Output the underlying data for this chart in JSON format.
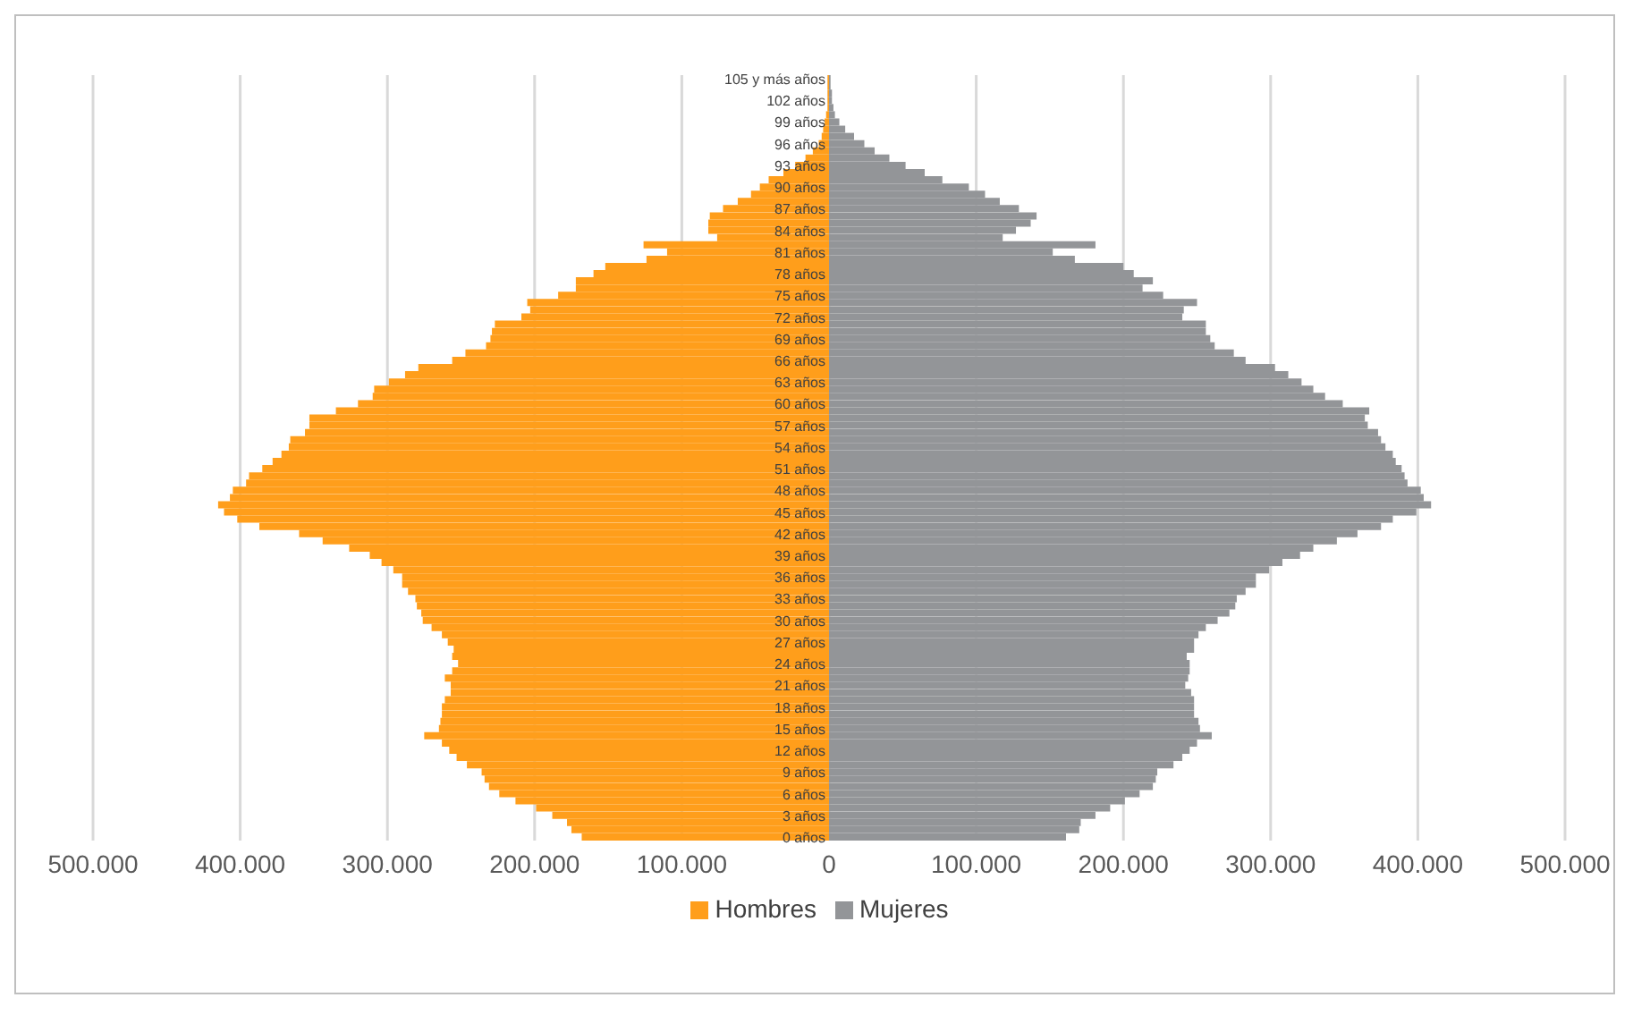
{
  "chart_data": {
    "type": "bar",
    "orientation": "horizontal",
    "stacked": true,
    "categories": [
      "105 y más años",
      null,
      null,
      "102 años",
      null,
      null,
      "99 años",
      null,
      null,
      "96 años",
      null,
      null,
      "93 años",
      null,
      null,
      "90 años",
      null,
      null,
      "87 años",
      null,
      null,
      "84 años",
      null,
      null,
      "81 años",
      null,
      null,
      "78 años",
      null,
      null,
      "75 años",
      null,
      null,
      "72 años",
      null,
      null,
      "69 años",
      null,
      null,
      "66 años",
      null,
      null,
      "63 años",
      null,
      null,
      "60 años",
      null,
      null,
      "57 años",
      null,
      null,
      "54 años",
      null,
      null,
      "51 años",
      null,
      null,
      "48 años",
      null,
      null,
      "45 años",
      null,
      null,
      "42 años",
      null,
      null,
      "39 años",
      null,
      null,
      "36 años",
      null,
      null,
      "33 años",
      null,
      null,
      "30 años",
      null,
      null,
      "27 años",
      null,
      null,
      "24 años",
      null,
      null,
      "21 años",
      null,
      null,
      "18 años",
      null,
      null,
      "15 años",
      null,
      null,
      "12 años",
      null,
      null,
      "9 años",
      null,
      null,
      "6 años",
      null,
      null,
      "3 años",
      null,
      null,
      "0 años"
    ],
    "series": [
      {
        "name": "Hombres",
        "color": "#ff9e1b",
        "values": [
          -1000,
          -1000,
          -1000,
          -1000,
          -1000,
          -2000,
          -3000,
          -4000,
          -5000,
          -7000,
          -11000,
          -16000,
          -23000,
          -31000,
          -41000,
          -47000,
          -53000,
          -62000,
          -72000,
          -81000,
          -82000,
          -82000,
          -76000,
          -126000,
          -110000,
          -124000,
          -152000,
          -160000,
          -172000,
          -172000,
          -184000,
          -205000,
          -203000,
          -209000,
          -227000,
          -229000,
          -230000,
          -233000,
          -247000,
          -256000,
          -279000,
          -288000,
          -299000,
          -309000,
          -310000,
          -320000,
          -335000,
          -353000,
          -353000,
          -356000,
          -366000,
          -367000,
          -372000,
          -378000,
          -385000,
          -394000,
          -396000,
          -405000,
          -407000,
          -415000,
          -411000,
          -402000,
          -387000,
          -360000,
          -344000,
          -326000,
          -312000,
          -304000,
          -296000,
          -290000,
          -290000,
          -286000,
          -281000,
          -280000,
          -277000,
          -276000,
          -270000,
          -263000,
          -259000,
          -255000,
          -256000,
          -252000,
          -256000,
          -261000,
          -257000,
          -257000,
          -261000,
          -263000,
          -263000,
          -264000,
          -265000,
          -275000,
          -263000,
          -258000,
          -253000,
          -246000,
          -236000,
          -234000,
          -231000,
          -224000,
          -213000,
          -199000,
          -188000,
          -178000,
          -175000,
          -168000
        ]
      },
      {
        "name": "Mujeres",
        "color": "#939598",
        "values": [
          1000,
          1000,
          2000,
          2000,
          3000,
          4000,
          7000,
          11000,
          17000,
          24000,
          31000,
          41000,
          52000,
          65000,
          77000,
          95000,
          106000,
          116000,
          129000,
          141000,
          137000,
          127000,
          118000,
          181000,
          152000,
          167000,
          200000,
          207000,
          220000,
          213000,
          227000,
          250000,
          241000,
          240000,
          256000,
          256000,
          259000,
          262000,
          275000,
          283000,
          303000,
          312000,
          321000,
          329000,
          337000,
          349000,
          367000,
          364000,
          366000,
          373000,
          375000,
          378000,
          383000,
          385000,
          389000,
          391000,
          393000,
          402000,
          404000,
          409000,
          399000,
          383000,
          375000,
          359000,
          345000,
          329000,
          320000,
          308000,
          299000,
          290000,
          290000,
          283000,
          277000,
          276000,
          272000,
          264000,
          256000,
          251000,
          248000,
          248000,
          243000,
          245000,
          245000,
          244000,
          242000,
          246000,
          248000,
          248000,
          248000,
          251000,
          252000,
          260000,
          250000,
          245000,
          240000,
          234000,
          223000,
          222000,
          220000,
          211000,
          201000,
          191000,
          181000,
          171000,
          170000,
          161000
        ]
      }
    ],
    "xlim": [
      -500000,
      500000
    ],
    "xticks": [
      {
        "value": -500000,
        "label": "500.000"
      },
      {
        "value": -400000,
        "label": "400.000"
      },
      {
        "value": -300000,
        "label": "300.000"
      },
      {
        "value": -200000,
        "label": "200.000"
      },
      {
        "value": -100000,
        "label": "100.000"
      },
      0,
      {
        "value": 100000,
        "label": "100.000"
      },
      {
        "value": 200000,
        "label": "200.000"
      },
      {
        "value": 300000,
        "label": "300.000"
      },
      {
        "value": 400000,
        "label": "400.000"
      },
      {
        "value": 500000,
        "label": "500.000"
      }
    ],
    "grid": "x",
    "legend": "bottom"
  }
}
